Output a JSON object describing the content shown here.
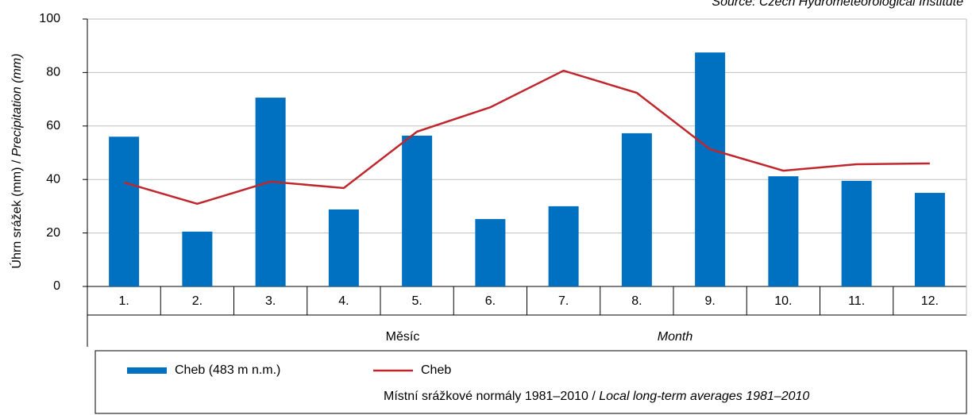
{
  "chart_data": {
    "type": "bar",
    "source": "Source: Czech Hydrometeorological Institute",
    "y_label": "Úhrn srážek (mm) / ",
    "y_label_en": "Precipitation (mm)",
    "x_label": "Měsíc",
    "x_label_en": "Month",
    "categories": [
      "1.",
      "2.",
      "3.",
      "4.",
      "5.",
      "6.",
      "7.",
      "8.",
      "9.",
      "10.",
      "11.",
      "12."
    ],
    "series": [
      {
        "name": "Cheb (483 m n.m.)",
        "type": "bar",
        "color": "#0070c0",
        "values": [
          56,
          20.5,
          70.6,
          28.8,
          56.4,
          25.2,
          30,
          57.3,
          87.5,
          41.2,
          39.5,
          35
        ]
      },
      {
        "name": "Cheb",
        "type": "line",
        "color": "#c0272d",
        "values": [
          38.9,
          30.9,
          39.2,
          36.8,
          57.9,
          67,
          80.7,
          72.4,
          51.3,
          43.3,
          45.7,
          46
        ]
      }
    ],
    "legend_note": "Místní srážkové normály 1981–2010 / ",
    "legend_note_en": "Local long-term averages 1981–2010",
    "ylim": [
      0,
      100
    ],
    "yticks": [
      0,
      20,
      40,
      60,
      80,
      100
    ],
    "grid": true
  }
}
